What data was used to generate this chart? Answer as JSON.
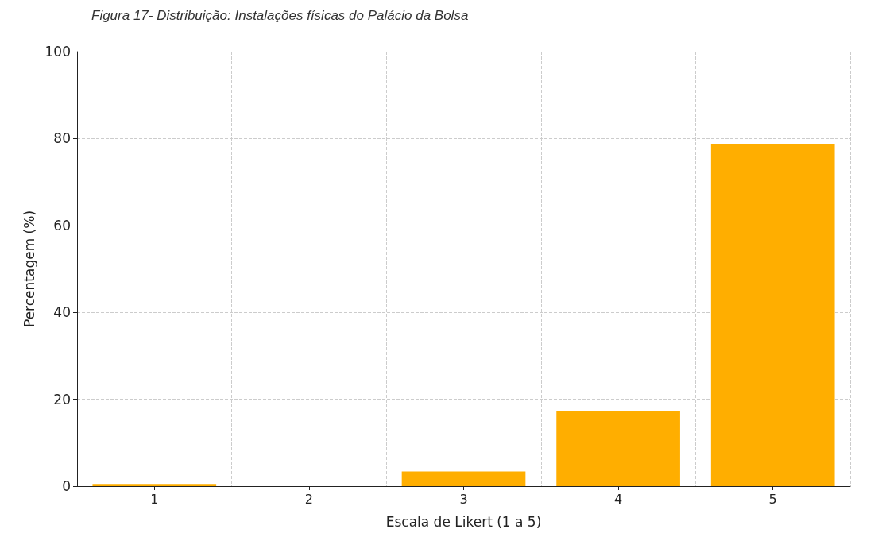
{
  "chart_data": {
    "type": "bar",
    "title": "Figura 17- Distribuição: Instalações físicas do Palácio da Bolsa",
    "xlabel": "Escala de Likert (1 a 5)",
    "ylabel": "Percentagem (%)",
    "categories": [
      "1",
      "2",
      "3",
      "4",
      "5"
    ],
    "values": [
      0.5,
      0,
      3.4,
      17.2,
      78.8
    ],
    "color": "#ffae00",
    "ylim": [
      0,
      100
    ],
    "yticks": [
      0,
      20,
      40,
      60,
      80,
      100
    ],
    "grid": true
  }
}
